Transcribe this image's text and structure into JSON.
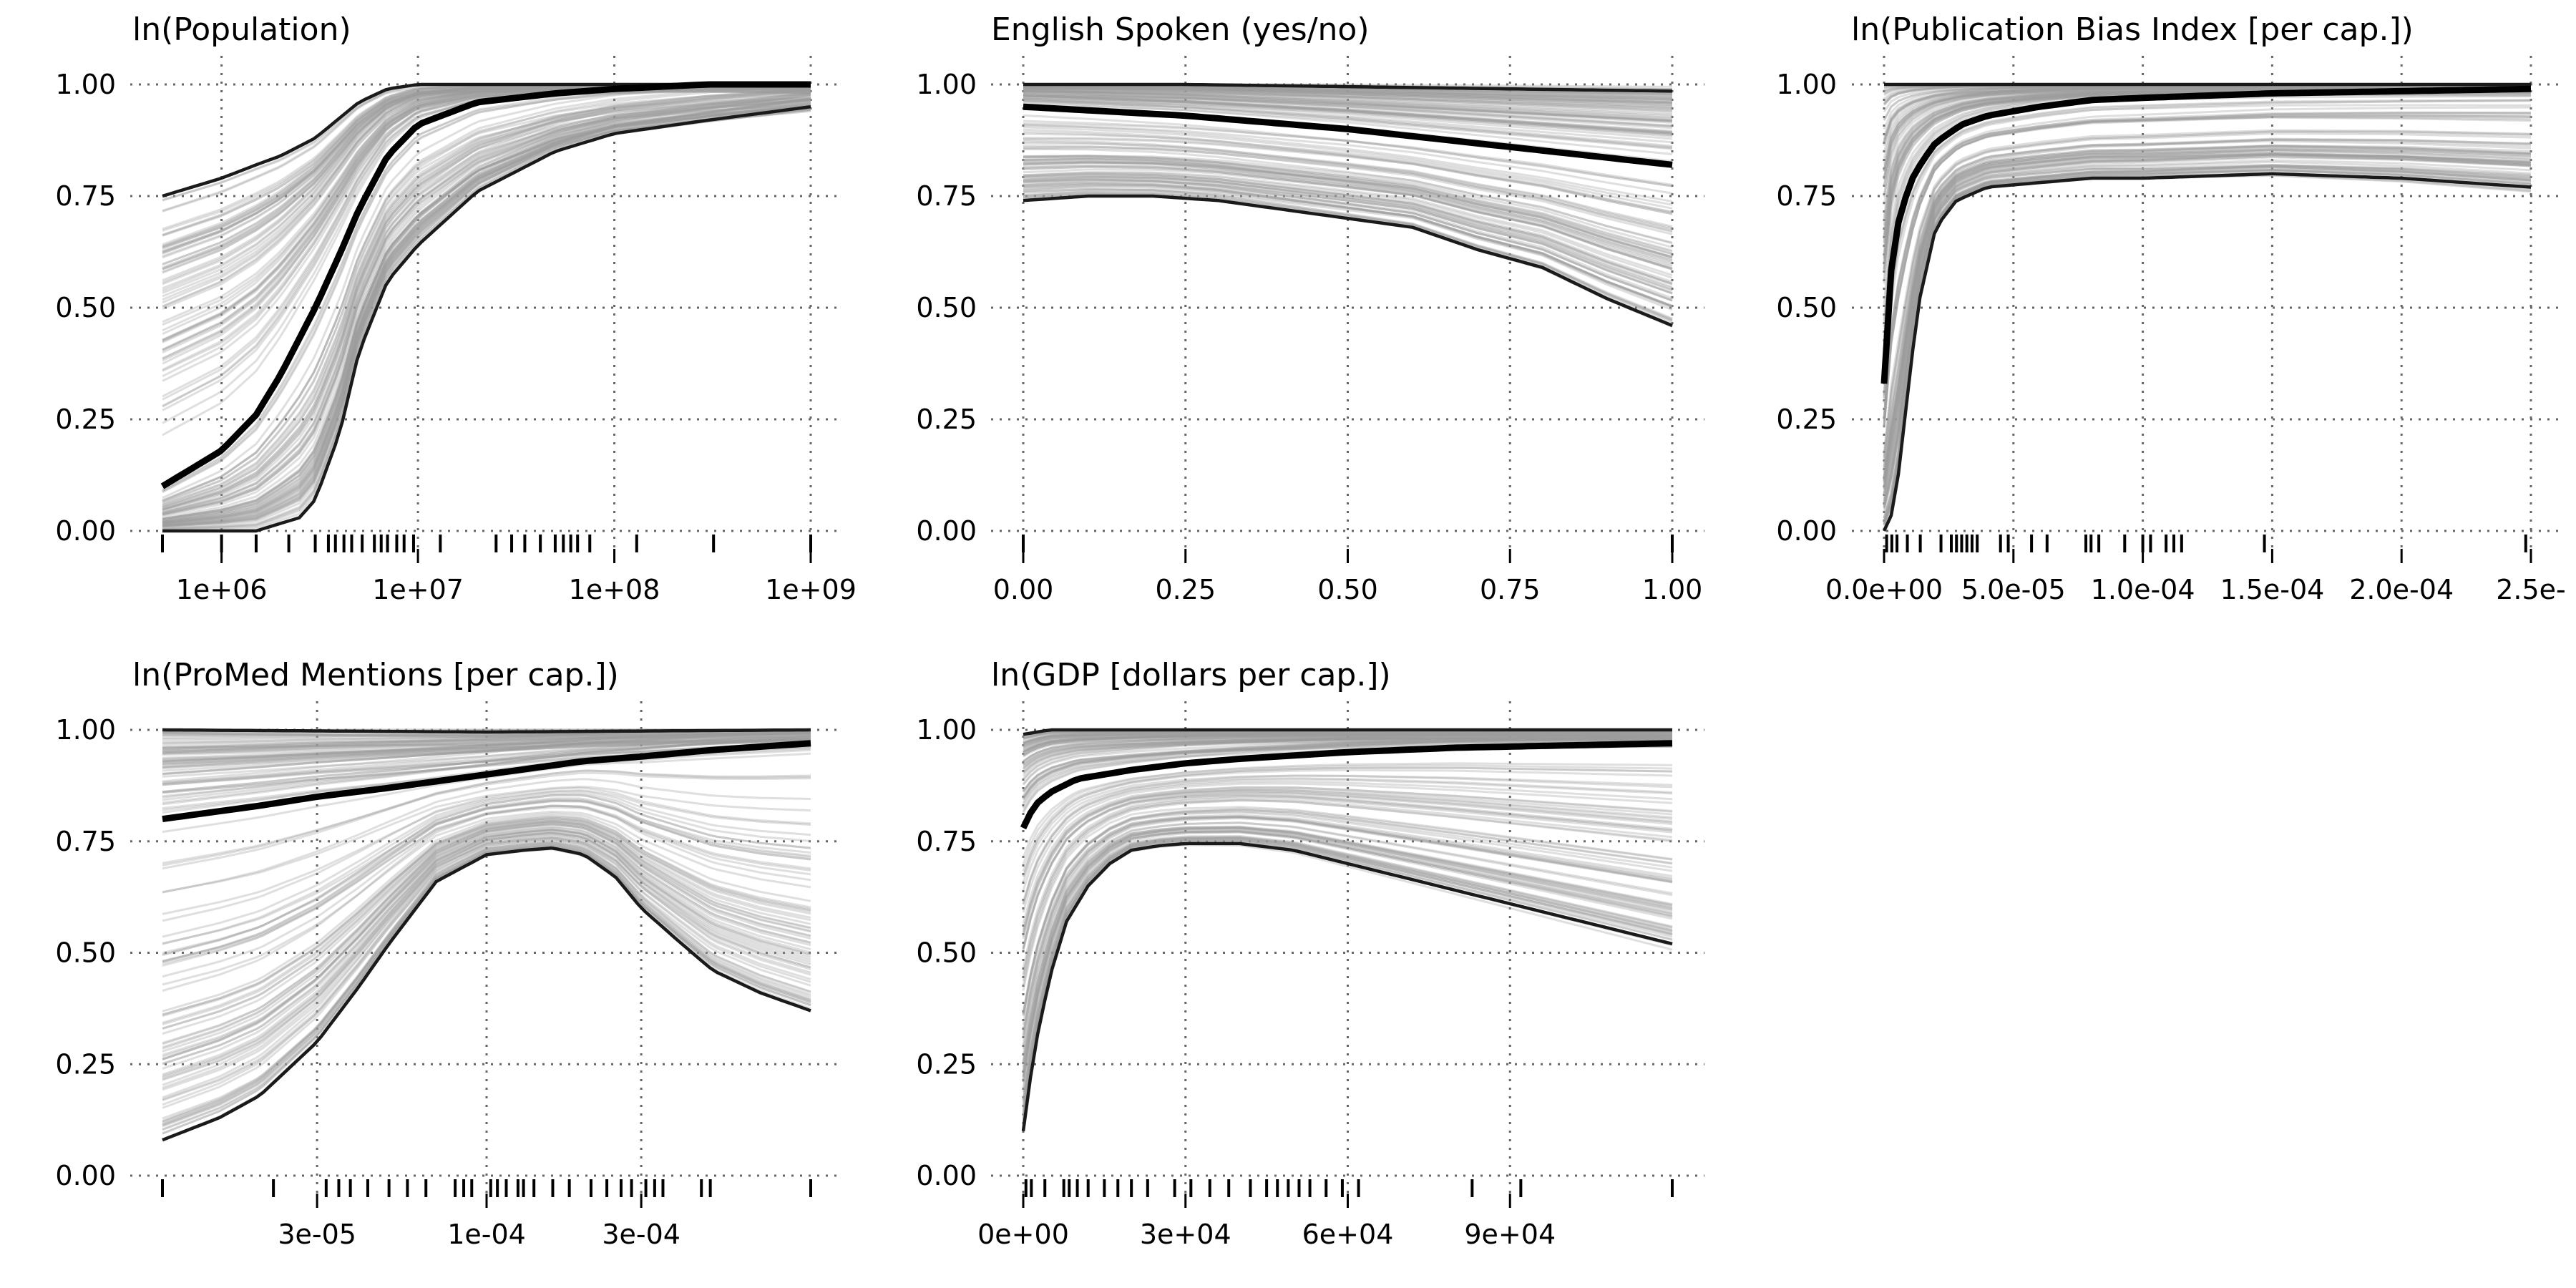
{
  "chart_data": [
    {
      "type": "line",
      "title": "ln(Population)",
      "x_scale": "log",
      "xlim": [
        500000,
        1000000000
      ],
      "ylim": [
        0,
        1
      ],
      "x_ticks": [
        1000000,
        10000000,
        100000000,
        1000000000
      ],
      "x_tick_labels": [
        "1e+06",
        "1e+07",
        "1e+08",
        "1e+09"
      ],
      "y_ticks": [
        0,
        0.25,
        0.5,
        0.75,
        1
      ],
      "y_tick_labels": [
        "0.00",
        "0.25",
        "0.50",
        "0.75",
        "1.00"
      ],
      "grid": true,
      "rug": [
        500000,
        1000000,
        1500000,
        2200000,
        3000000,
        3500000,
        3800000,
        4200000,
        4600000,
        5200000,
        6000000,
        6500000,
        7000000,
        7800000,
        8500000,
        9500000,
        13000000,
        25000000,
        30000000,
        35000000,
        42000000,
        50000000,
        55000000,
        60000000,
        65000000,
        75000000,
        130000000,
        320000000,
        1000000000
      ],
      "series": [
        {
          "role": "upper",
          "x": [
            500000,
            1000000,
            1500000,
            2000000,
            3000000,
            5000000,
            7000000,
            10000000,
            1000000000
          ],
          "y": [
            0.75,
            0.79,
            0.82,
            0.84,
            0.88,
            0.96,
            0.99,
            1.0,
            1.0
          ]
        },
        {
          "role": "mean",
          "x": [
            500000,
            1000000,
            1500000,
            2000000,
            3000000,
            4000000,
            5000000,
            7000000,
            10000000,
            20000000,
            50000000,
            100000000,
            300000000,
            1000000000
          ],
          "y": [
            0.1,
            0.18,
            0.26,
            0.35,
            0.5,
            0.62,
            0.72,
            0.84,
            0.91,
            0.96,
            0.98,
            0.99,
            1.0,
            1.0
          ]
        },
        {
          "role": "lower",
          "x": [
            500000,
            1500000,
            2500000,
            3000000,
            4000000,
            5000000,
            7000000,
            10000000,
            20000000,
            50000000,
            100000000,
            300000000,
            1000000000
          ],
          "y": [
            0.0,
            0.0,
            0.03,
            0.07,
            0.22,
            0.4,
            0.56,
            0.64,
            0.76,
            0.85,
            0.89,
            0.92,
            0.95
          ]
        }
      ]
    },
    {
      "type": "line",
      "title": "English Spoken (yes/no)",
      "x_scale": "linear",
      "xlim": [
        0,
        1
      ],
      "ylim": [
        0,
        1
      ],
      "x_ticks": [
        0,
        0.25,
        0.5,
        0.75,
        1
      ],
      "x_tick_labels": [
        "0.00",
        "0.25",
        "0.50",
        "0.75",
        "1.00"
      ],
      "y_ticks": [
        0,
        0.25,
        0.5,
        0.75,
        1
      ],
      "y_tick_labels": [
        "0.00",
        "0.25",
        "0.50",
        "0.75",
        "1.00"
      ],
      "grid": true,
      "rug": [
        0,
        1
      ],
      "series": [
        {
          "role": "upper",
          "x": [
            0,
            0.25,
            0.5,
            0.75,
            1
          ],
          "y": [
            1.0,
            1.0,
            0.995,
            0.99,
            0.985
          ]
        },
        {
          "role": "mean",
          "x": [
            0,
            0.25,
            0.5,
            0.75,
            1
          ],
          "y": [
            0.95,
            0.93,
            0.9,
            0.86,
            0.82
          ]
        },
        {
          "role": "lower",
          "x": [
            0,
            0.1,
            0.2,
            0.3,
            0.4,
            0.5,
            0.6,
            0.7,
            0.8,
            0.9,
            1
          ],
          "y": [
            0.74,
            0.75,
            0.75,
            0.74,
            0.72,
            0.7,
            0.68,
            0.63,
            0.59,
            0.52,
            0.46
          ]
        }
      ]
    },
    {
      "type": "line",
      "title": "ln(Publication Bias Index [per cap.])",
      "x_scale": "linear",
      "xlim": [
        0,
        0.00025
      ],
      "ylim": [
        0,
        1
      ],
      "x_ticks": [
        0,
        5e-05,
        0.0001,
        0.00015,
        0.0002,
        0.00025
      ],
      "x_tick_labels": [
        "0.0e+00",
        "5.0e-05",
        "1.0e-04",
        "1.5e-04",
        "2.0e-04",
        "2.5e-"
      ],
      "y_ticks": [
        0,
        0.25,
        0.5,
        0.75,
        1
      ],
      "y_tick_labels": [
        "0.00",
        "0.25",
        "0.50",
        "0.75",
        "1.00"
      ],
      "grid": true,
      "rug": [
        1e-06,
        3e-06,
        5e-06,
        9e-06,
        1.4e-05,
        2.2e-05,
        2.6e-05,
        2.8e-05,
        3e-05,
        3.2e-05,
        3.4e-05,
        3.6e-05,
        4.5e-05,
        4.8e-05,
        5.7e-05,
        6.3e-05,
        7.8e-05,
        8e-05,
        8.3e-05,
        9.3e-05,
        0.0001,
        0.000103,
        0.000109,
        0.000112,
        0.000115,
        0.000147,
        0.000248
      ],
      "series": [
        {
          "role": "upper",
          "x": [
            0,
            2e-05,
            0.00025
          ],
          "y": [
            1.0,
            1.0,
            1.0
          ]
        },
        {
          "role": "mean",
          "x": [
            0,
            2e-06,
            5e-06,
            1e-05,
            1.5e-05,
            2e-05,
            3e-05,
            4e-05,
            6e-05,
            8e-05,
            0.0001,
            0.00015,
            0.0002,
            0.00025
          ],
          "y": [
            0.33,
            0.55,
            0.68,
            0.78,
            0.83,
            0.87,
            0.91,
            0.93,
            0.95,
            0.965,
            0.97,
            0.98,
            0.985,
            0.99
          ]
        },
        {
          "role": "lower",
          "x": [
            0,
            4e-06,
            8e-06,
            1.3e-05,
            2e-05,
            2.8e-05,
            4e-05,
            6e-05,
            8e-05,
            0.0001,
            0.00015,
            0.0002,
            0.00025
          ],
          "y": [
            0.0,
            0.05,
            0.25,
            0.5,
            0.68,
            0.74,
            0.77,
            0.78,
            0.79,
            0.79,
            0.8,
            0.79,
            0.77
          ]
        }
      ]
    },
    {
      "type": "line",
      "title": "ln(ProMed Mentions [per cap.])",
      "x_scale": "log",
      "xlim": [
        1e-05,
        0.001
      ],
      "ylim": [
        0,
        1
      ],
      "x_ticks": [
        3e-05,
        0.0001,
        0.0003
      ],
      "x_tick_labels": [
        "3e-05",
        "1e-04",
        "3e-04"
      ],
      "y_ticks": [
        0,
        0.25,
        0.5,
        0.75,
        1
      ],
      "y_tick_labels": [
        "0.00",
        "0.25",
        "0.50",
        "0.75",
        "1.00"
      ],
      "grid": true,
      "rug": [
        1e-05,
        2.2e-05,
        3.2e-05,
        3.5e-05,
        3.8e-05,
        4.3e-05,
        5e-05,
        5.7e-05,
        6.5e-05,
        8e-05,
        8.5e-05,
        9e-05,
        0.000103,
        0.000108,
        0.000115,
        0.000125,
        0.00013,
        0.00014,
        0.00016,
        0.00018,
        0.00021,
        0.000235,
        0.00026,
        0.00028,
        0.00031,
        0.00033,
        0.00035,
        0.00046,
        0.00049,
        0.001
      ],
      "series": [
        {
          "role": "upper",
          "x": [
            1e-05,
            0.0001,
            0.001
          ],
          "y": [
            1.0,
            0.995,
            1.0
          ]
        },
        {
          "role": "mean",
          "x": [
            1e-05,
            2e-05,
            3e-05,
            5e-05,
            0.0001,
            0.0002,
            0.0003,
            0.0005,
            0.001
          ],
          "y": [
            0.8,
            0.83,
            0.85,
            0.87,
            0.9,
            0.93,
            0.94,
            0.955,
            0.97
          ]
        },
        {
          "role": "lower",
          "x": [
            1e-05,
            1.5e-05,
            2e-05,
            3e-05,
            4e-05,
            5e-05,
            7e-05,
            0.0001,
            0.00013,
            0.00016,
            0.0002,
            0.00025,
            0.0003,
            0.0004,
            0.0005,
            0.0007,
            0.001
          ],
          "y": [
            0.08,
            0.13,
            0.18,
            0.3,
            0.42,
            0.52,
            0.66,
            0.72,
            0.73,
            0.735,
            0.72,
            0.67,
            0.6,
            0.52,
            0.46,
            0.41,
            0.37
          ]
        }
      ]
    },
    {
      "type": "line",
      "title": "ln(GDP [dollars per cap.])",
      "x_scale": "linear",
      "xlim": [
        0,
        120000
      ],
      "ylim": [
        0,
        1
      ],
      "x_ticks": [
        0,
        30000,
        60000,
        90000
      ],
      "x_tick_labels": [
        "0e+00",
        "3e+04",
        "6e+04",
        "9e+04"
      ],
      "y_ticks": [
        0,
        0.25,
        0.5,
        0.75,
        1
      ],
      "y_tick_labels": [
        "0.00",
        "0.25",
        "0.50",
        "0.75",
        "1.00"
      ],
      "grid": true,
      "rug": [
        500,
        1500,
        4000,
        7500,
        8500,
        10000,
        12000,
        15000,
        17500,
        20000,
        23000,
        28000,
        31000,
        34500,
        38000,
        42000,
        45000,
        47000,
        49000,
        51000,
        53000,
        56000,
        59000,
        62000,
        83000,
        92000,
        120000
      ],
      "series": [
        {
          "role": "upper",
          "x": [
            0,
            5000,
            120000
          ],
          "y": [
            0.99,
            1.0,
            1.0
          ]
        },
        {
          "role": "mean",
          "x": [
            0,
            2000,
            5000,
            10000,
            20000,
            30000,
            40000,
            60000,
            80000,
            100000,
            120000
          ],
          "y": [
            0.78,
            0.83,
            0.86,
            0.89,
            0.91,
            0.925,
            0.935,
            0.95,
            0.96,
            0.965,
            0.97
          ]
        },
        {
          "role": "lower",
          "x": [
            0,
            2000,
            5000,
            8000,
            12000,
            16000,
            20000,
            25000,
            30000,
            40000,
            50000,
            60000,
            70000,
            80000,
            90000,
            100000,
            110000,
            120000
          ],
          "y": [
            0.1,
            0.28,
            0.45,
            0.57,
            0.65,
            0.7,
            0.73,
            0.74,
            0.745,
            0.745,
            0.73,
            0.7,
            0.67,
            0.64,
            0.61,
            0.58,
            0.55,
            0.52
          ]
        }
      ]
    }
  ]
}
